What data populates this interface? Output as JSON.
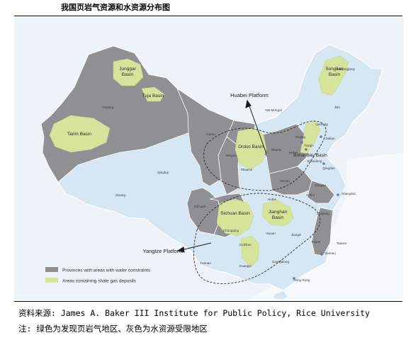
{
  "title": "我国页岩气资源和水资源分布图",
  "colors": {
    "background": "#ffffff",
    "china_land": "#d6e6f3",
    "neighbor_land": "#edf3f9",
    "water_constrained": "#8e9093",
    "shale_gas": "#d4e49a",
    "text": "#3a3a3a"
  },
  "map": {
    "basins": [
      {
        "name": "Junggar\nBasin"
      },
      {
        "name": "Tuja Basin"
      },
      {
        "name": "Tarim Basin"
      },
      {
        "name": "Ordos Basin"
      },
      {
        "name": "Sichuan Basin"
      },
      {
        "name": "Jianghan\nBasin"
      },
      {
        "name": "Bohai Bay Basin"
      },
      {
        "name": "Songliao\nBasin"
      }
    ],
    "platforms": [
      {
        "name": "Huabei Platform"
      },
      {
        "name": "Yangtze Platform"
      }
    ],
    "places": [
      "Heilongjiang",
      "Jilin",
      "Nei Mongol",
      "Liaoning",
      "Xinjiang",
      "Gansu",
      "Qinghai",
      "Xizang",
      "Ningxia",
      "Shaanxi",
      "Shanxi",
      "Hebei",
      "Beijing",
      "Tianjin",
      "Dalian",
      "Shandong",
      "Qingdao",
      "Henan",
      "Jiangsu",
      "Shanghai",
      "Anhui",
      "Hubei",
      "Zhejiang",
      "Chongqing",
      "Sichuan",
      "Hunan",
      "Jiangxi",
      "Fujian",
      "Taiwan",
      "Guizhou",
      "Yunnan",
      "Guangxi",
      "Guangdong",
      "Xiamen",
      "Hong Kong"
    ]
  },
  "legend": [
    {
      "label": "Provinces with areas with water constraints",
      "color": "#8e9093"
    },
    {
      "label": "Areas containing shale gas deposits",
      "color": "#d4e49a"
    }
  ],
  "source_note": "资料来源: James A. Baker III Institute for Public Policy, Rice University",
  "caption_note": "注: 绿色为发现页岩气地区、灰色为水资源受限地区"
}
